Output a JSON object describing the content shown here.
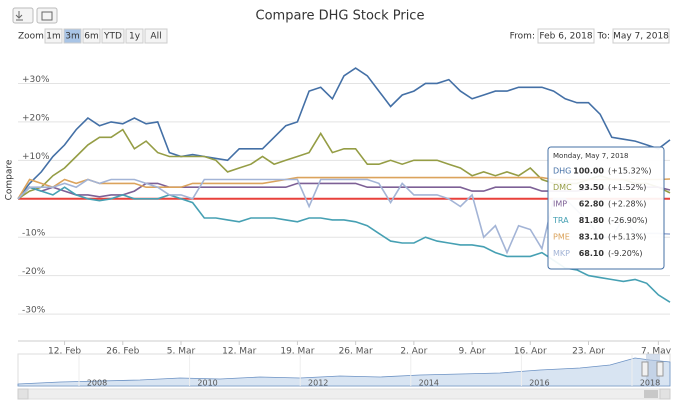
{
  "chart_data": {
    "type": "line",
    "title": "Compare DHG Stock Price",
    "y_axis_title": "Compare",
    "range_selector": {
      "zoom_label": "Zoom",
      "buttons": [
        "1m",
        "3m",
        "6m",
        "YTD",
        "1y",
        "All"
      ],
      "selected": 1,
      "from_label": "From:",
      "from": "Feb 6, 2018",
      "to_label": "To:",
      "to": "May 7, 2018"
    },
    "categories": [
      null,
      null,
      null,
      null,
      "12. Feb",
      null,
      null,
      null,
      null,
      "26. Feb",
      null,
      null,
      null,
      null,
      "5. Mar",
      null,
      null,
      null,
      null,
      "12. Mar",
      null,
      null,
      null,
      null,
      "19. Mar",
      null,
      null,
      null,
      null,
      "26. Mar",
      null,
      null,
      null,
      null,
      "2. Apr",
      null,
      null,
      null,
      null,
      "9. Apr",
      null,
      null,
      null,
      null,
      "16. Apr",
      null,
      null,
      null,
      null,
      "23. Apr",
      null,
      null,
      null,
      null,
      null,
      "7. May",
      null
    ],
    "ylim": [
      -37,
      40
    ],
    "yticks": [
      {
        "value": -30,
        "label": "-30%"
      },
      {
        "value": -20,
        "label": "-20%"
      },
      {
        "value": -10,
        "label": "-10%"
      },
      {
        "value": 10,
        "label": "+10%"
      },
      {
        "value": 20,
        "label": "+20%"
      },
      {
        "value": 30,
        "label": "+30%"
      }
    ],
    "grid": true,
    "plot_lines": [
      {
        "value": 0,
        "color": "#e8413b"
      }
    ],
    "series": [
      {
        "name": "DHG",
        "color": "#4470a6",
        "values": [
          0,
          4,
          7,
          11,
          14,
          18,
          21,
          19,
          20,
          19.5,
          21,
          19.5,
          20,
          12,
          11,
          11.5,
          11,
          10.5,
          10,
          13,
          13,
          13,
          16,
          19,
          20,
          28,
          29,
          26,
          32,
          34,
          32,
          28,
          24,
          27,
          28,
          30,
          30,
          31,
          28,
          26,
          27,
          28,
          28,
          29,
          29,
          29,
          28,
          26,
          25,
          25,
          22,
          16,
          15.5,
          15,
          14,
          13,
          15.32
        ]
      },
      {
        "name": "DMC",
        "color": "#959d45",
        "values": [
          0,
          2,
          3,
          6,
          8,
          11,
          14,
          16,
          16,
          18,
          13,
          15,
          12,
          11,
          11,
          11,
          11,
          10,
          7,
          8,
          9,
          11,
          9,
          10,
          11,
          12,
          17,
          12,
          13,
          13,
          9,
          9,
          10,
          9,
          10,
          10,
          10,
          9,
          8,
          6,
          7,
          6,
          7,
          6,
          8,
          5,
          4,
          4,
          4,
          5,
          6,
          5,
          5,
          4,
          4,
          3,
          1.52
        ]
      },
      {
        "name": "IMP",
        "color": "#7d6096",
        "values": [
          0,
          3,
          2,
          3,
          2,
          1,
          1,
          0.5,
          1,
          1,
          2,
          4,
          4,
          3,
          3,
          3,
          3,
          3,
          3,
          3,
          3,
          3,
          3,
          3,
          4,
          4,
          4,
          4,
          4,
          4,
          3,
          3,
          3,
          3,
          3,
          3,
          3,
          3,
          3,
          2,
          2,
          3,
          3,
          3,
          3,
          2,
          2,
          2,
          2,
          2.5,
          2.5,
          2.5,
          3,
          3,
          3,
          3,
          2.28
        ]
      },
      {
        "name": "TRA",
        "color": "#46a0b3",
        "values": [
          0,
          3,
          2,
          1,
          3,
          1,
          0,
          -0.5,
          0,
          1,
          0,
          0,
          0,
          1,
          0,
          -1,
          -5,
          -5,
          -5.5,
          -6,
          -5,
          -5,
          -5,
          -5.5,
          -6,
          -5,
          -5,
          -5.5,
          -5.5,
          -6,
          -7,
          -9,
          -11,
          -11.5,
          -11.5,
          -10,
          -11,
          -11.5,
          -12,
          -12,
          -12.5,
          -14,
          -15,
          -15,
          -15,
          -14,
          -16,
          -18,
          -18.5,
          -20,
          -20.5,
          -21,
          -21.5,
          -21,
          -22,
          -25,
          -26.9
        ]
      },
      {
        "name": "PME",
        "color": "#dba35c",
        "values": [
          0,
          5,
          4,
          3,
          5,
          4,
          5,
          4,
          4,
          4,
          4,
          3,
          3,
          3,
          3,
          4,
          4,
          4,
          4,
          4,
          4,
          4,
          4.5,
          5,
          5.5,
          5.5,
          5.5,
          5.5,
          5.5,
          5.5,
          5.5,
          5.5,
          5.5,
          5.5,
          5.5,
          5.5,
          5.5,
          5.5,
          5.5,
          5.5,
          5.5,
          5.5,
          5.5,
          5.5,
          5.5,
          5.5,
          5,
          5,
          5,
          5,
          5,
          5,
          5,
          5,
          5,
          5,
          5.13
        ]
      },
      {
        "name": "MKP",
        "color": "#a3b4d6",
        "values": [
          0,
          3,
          3,
          3,
          4,
          3,
          5,
          4,
          5,
          5,
          5,
          4,
          3,
          1,
          1,
          0,
          5,
          5,
          5,
          5,
          5,
          5,
          5,
          5,
          5,
          -2,
          5,
          5,
          5,
          5,
          5,
          4,
          -1,
          4,
          1,
          1,
          1,
          0,
          -2,
          1,
          -10,
          -7,
          -14,
          -7,
          -8,
          -13,
          0,
          0,
          -3,
          -6,
          -10,
          -10,
          -5,
          -9,
          -9,
          -9,
          -9.2
        ]
      }
    ],
    "tooltip": {
      "header": "Monday, May 7, 2018",
      "rows": [
        {
          "name": "DHG",
          "value": "100.00",
          "change": "(+15.32%)"
        },
        {
          "name": "DMC",
          "value": "93.50",
          "change": "(+1.52%)"
        },
        {
          "name": "IMP",
          "value": "62.80",
          "change": "(+2.28%)"
        },
        {
          "name": "TRA",
          "value": "81.80",
          "change": "(-26.90%)"
        },
        {
          "name": "PME",
          "value": "83.10",
          "change": "(+5.13%)"
        },
        {
          "name": "MKP",
          "value": "68.10",
          "change": "(-9.20%)"
        }
      ]
    },
    "navigator": {
      "labels": [
        "2008",
        "2010",
        "2012",
        "2014",
        "2016",
        "2018"
      ]
    }
  }
}
